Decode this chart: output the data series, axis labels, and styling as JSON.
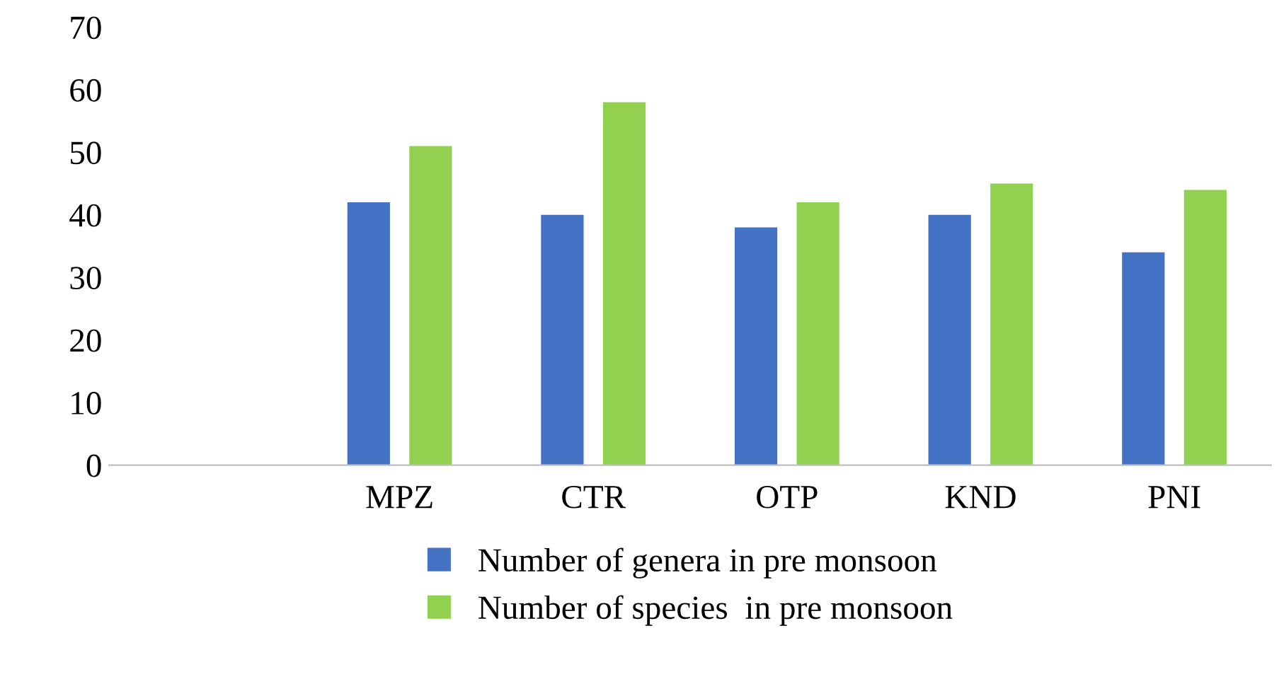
{
  "chart_data": {
    "type": "bar",
    "categories": [
      null,
      "MPZ",
      "CTR",
      "OTP",
      "KND",
      "PNI"
    ],
    "series": [
      {
        "name": "Number of genera in pre monsoon",
        "color": "#4472c4",
        "values": [
          null,
          42,
          40,
          38,
          40,
          34
        ]
      },
      {
        "name": "Number of species  in pre monsoon",
        "color": "#92d050",
        "values": [
          null,
          51,
          58,
          42,
          45,
          44
        ]
      }
    ],
    "ylim": [
      0,
      70
    ],
    "yticks": [
      0,
      10,
      20,
      30,
      40,
      50,
      60,
      70
    ],
    "grid": false,
    "legend": "bottom"
  }
}
